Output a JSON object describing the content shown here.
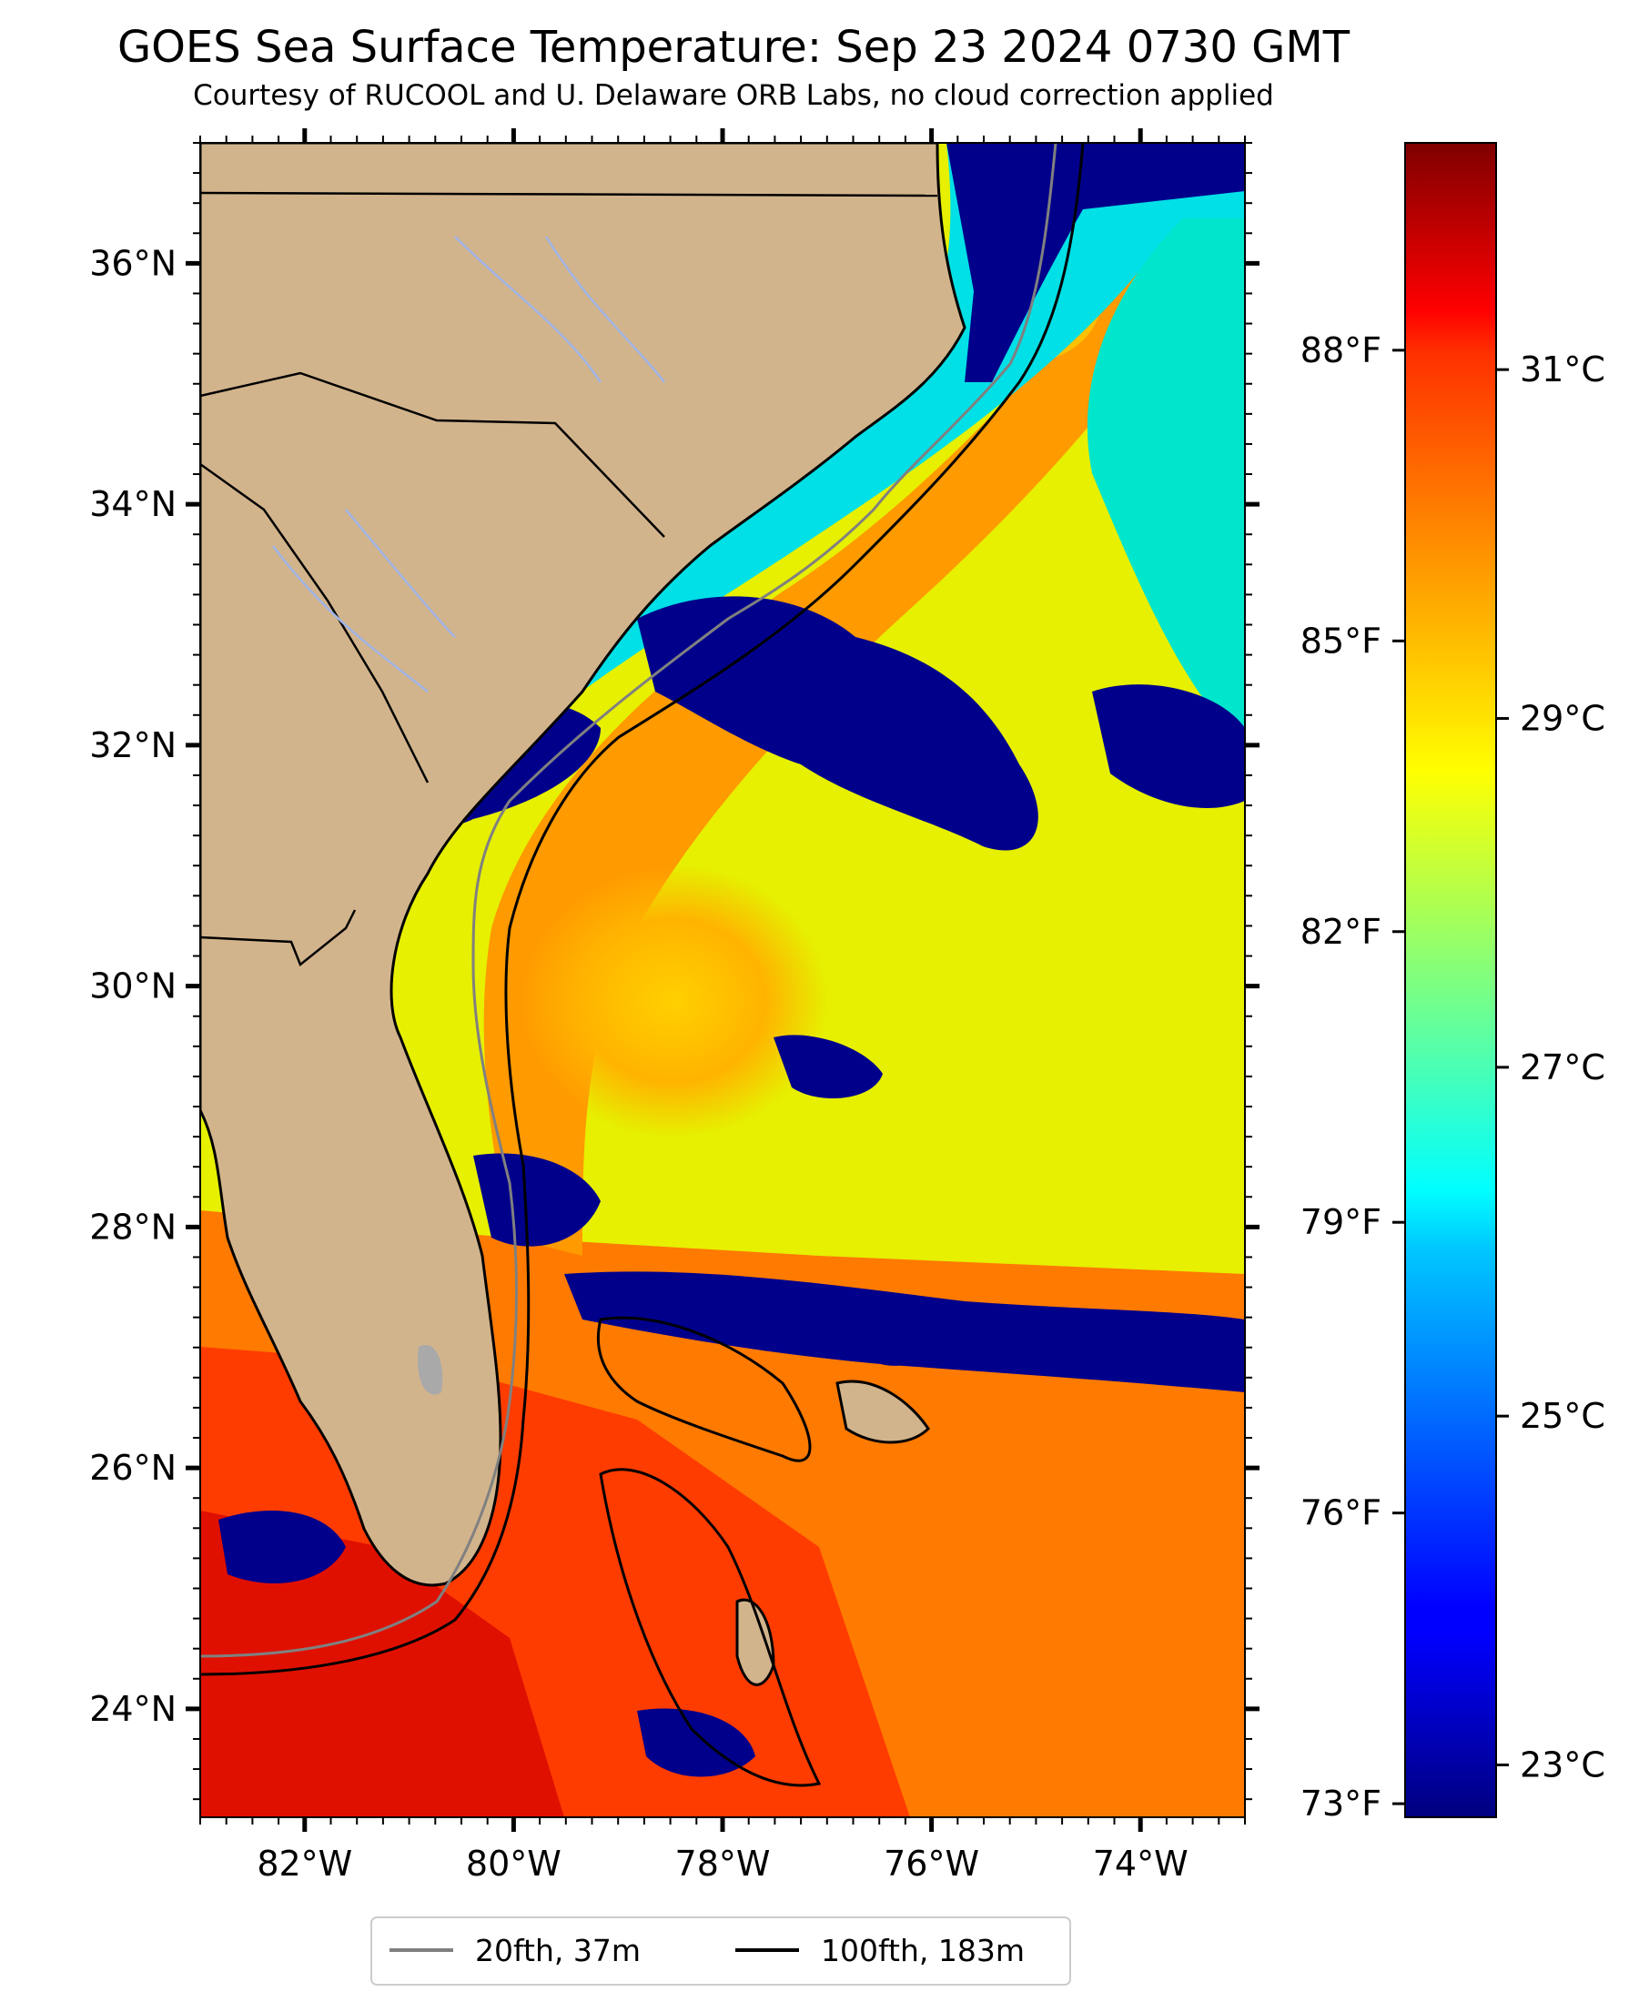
{
  "title": "GOES Sea Surface Temperature: Sep 23 2024 0730 GMT",
  "subtitle": "Courtesy of RUCOOL and U. Delaware ORB Labs, no cloud correction applied",
  "map": {
    "lon_range": [
      -83,
      -73
    ],
    "lat_range": [
      23.1,
      37.0
    ],
    "lat_ticks": [
      {
        "value": 36,
        "label": "36°N"
      },
      {
        "value": 34,
        "label": "34°N"
      },
      {
        "value": 32,
        "label": "32°N"
      },
      {
        "value": 30,
        "label": "30°N"
      },
      {
        "value": 28,
        "label": "28°N"
      },
      {
        "value": 26,
        "label": "26°N"
      },
      {
        "value": 24,
        "label": "24°N"
      }
    ],
    "lon_ticks": [
      {
        "value": -82,
        "label": "82°W"
      },
      {
        "value": -80,
        "label": "80°W"
      },
      {
        "value": -78,
        "label": "78°W"
      },
      {
        "value": -76,
        "label": "76°W"
      },
      {
        "value": -74,
        "label": "74°W"
      }
    ]
  },
  "colorbar": {
    "celsius_range": [
      22.7,
      32.3
    ],
    "celsius_ticks": [
      {
        "value": 31,
        "label": "31°C"
      },
      {
        "value": 29,
        "label": "29°C"
      },
      {
        "value": 27,
        "label": "27°C"
      },
      {
        "value": 25,
        "label": "25°C"
      },
      {
        "value": 23,
        "label": "23°C"
      }
    ],
    "fahrenheit_ticks": [
      {
        "value": 88,
        "label": "88°F"
      },
      {
        "value": 85,
        "label": "85°F"
      },
      {
        "value": 82,
        "label": "82°F"
      },
      {
        "value": 79,
        "label": "79°F"
      },
      {
        "value": 76,
        "label": "76°F"
      },
      {
        "value": 73,
        "label": "73°F"
      }
    ],
    "colormap": "jet"
  },
  "legend": {
    "placement": "bottom-center",
    "items": [
      {
        "label": "20fth, 37m",
        "color": "#808080"
      },
      {
        "label": "100fth, 183m",
        "color": "#000000"
      }
    ]
  },
  "colors": {
    "land": "#d2b48c",
    "cloud": "#00008b",
    "river": "#a0b4e6",
    "lake": "#a9a9a9"
  }
}
